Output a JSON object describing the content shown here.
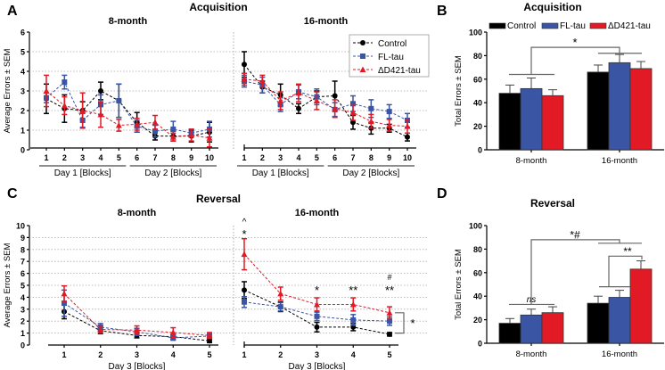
{
  "colors": {
    "Control": "#000000",
    "FL-tau": "#3a55a4",
    "ΔD421-tau": "#e21a26"
  },
  "panel_labels": [
    "A",
    "B",
    "C",
    "D"
  ],
  "chart_data": [
    {
      "id": "A",
      "type": "line",
      "title": "Acquisition",
      "ylabel": "Average Errors ± SEM",
      "ylim": [
        0,
        6
      ],
      "yticks": [
        0,
        1,
        2,
        3,
        4,
        5,
        6
      ],
      "groups": [
        "Day 1 [Blocks]",
        "Day 2 [Blocks]"
      ],
      "legend": [
        "Control",
        "FL-tau",
        "ΔD421-tau"
      ],
      "subplots": [
        {
          "title": "8-month",
          "x": [
            1,
            2,
            3,
            4,
            5,
            6,
            7,
            8,
            9,
            10
          ],
          "series": [
            {
              "name": "Control",
              "values": [
                2.6,
                2.1,
                2.0,
                3.0,
                2.5,
                1.4,
                0.7,
                0.7,
                0.7,
                0.9
              ],
              "sem": [
                0.75,
                0.7,
                0.45,
                0.45,
                0.85,
                0.5,
                0.2,
                0.25,
                0.3,
                0.5
              ]
            },
            {
              "name": "FL-tau",
              "values": [
                2.65,
                3.45,
                1.5,
                2.3,
                2.5,
                1.2,
                0.95,
                1.05,
                0.85,
                1.05
              ],
              "sem": [
                0.25,
                0.35,
                0.35,
                0.5,
                0.85,
                0.3,
                0.3,
                0.4,
                0.2,
                0.4
              ]
            },
            {
              "name": "ΔD421-tau",
              "values": [
                3.0,
                2.25,
                2.0,
                1.8,
                1.25,
                1.3,
                1.4,
                0.65,
                0.75,
                0.6
              ],
              "sem": [
                0.8,
                0.45,
                0.9,
                0.65,
                0.3,
                0.3,
                0.35,
                0.2,
                0.3,
                0.45
              ]
            }
          ]
        },
        {
          "title": "16-month",
          "x": [
            1,
            2,
            3,
            4,
            5,
            6,
            7,
            8,
            9,
            10
          ],
          "series": [
            {
              "name": "Control",
              "values": [
                4.35,
                3.2,
                2.8,
                2.1,
                2.7,
                2.75,
                1.4,
                1.1,
                1.1,
                0.65
              ],
              "sem": [
                0.65,
                0.3,
                0.55,
                0.25,
                0.3,
                0.75,
                0.35,
                0.3,
                0.2,
                0.2
              ]
            },
            {
              "name": "FL-tau",
              "values": [
                3.5,
                3.3,
                2.3,
                2.95,
                2.7,
                2.05,
                2.35,
                2.1,
                1.95,
                1.5
              ],
              "sem": [
                0.3,
                0.4,
                0.35,
                0.35,
                0.4,
                0.35,
                0.4,
                0.45,
                0.35,
                0.35
              ]
            },
            {
              "name": "ΔD421-tau",
              "values": [
                3.6,
                3.5,
                2.5,
                2.9,
                2.5,
                2.1,
                1.9,
                1.45,
                1.25,
                1.2
              ],
              "sem": [
                0.3,
                0.3,
                0.45,
                0.45,
                0.45,
                0.45,
                0.4,
                0.35,
                0.3,
                0.35
              ]
            }
          ]
        }
      ]
    },
    {
      "id": "B",
      "type": "bar",
      "title": "Acquisition",
      "ylabel": "Total Errors ± SEM",
      "ylim": [
        0,
        100
      ],
      "yticks": [
        0,
        20,
        40,
        60,
        80,
        100
      ],
      "categories": [
        "8-month",
        "16-month"
      ],
      "series": [
        {
          "name": "Control",
          "values": [
            48,
            66
          ],
          "sem": [
            7,
            6
          ]
        },
        {
          "name": "FL-tau",
          "values": [
            52,
            74
          ],
          "sem": [
            9,
            7
          ]
        },
        {
          "name": "ΔD421-tau",
          "values": [
            46,
            69
          ],
          "sem": [
            5,
            6
          ]
        }
      ],
      "annotations": [
        "*"
      ]
    },
    {
      "id": "C",
      "type": "line",
      "title": "Reversal",
      "ylabel": "Average Errors ± SEM",
      "ylim": [
        0,
        10
      ],
      "yticks": [
        0,
        1,
        2,
        3,
        4,
        5,
        6,
        7,
        8,
        9,
        10
      ],
      "xlabel": "Day 3 [Blocks]",
      "subplots": [
        {
          "title": "8-month",
          "x": [
            1,
            2,
            3,
            4,
            5
          ],
          "series": [
            {
              "name": "Control",
              "values": [
                2.8,
                1.2,
                0.8,
                0.7,
                0.35
              ],
              "sem": [
                0.6,
                0.25,
                0.2,
                0.2,
                0.15
              ]
            },
            {
              "name": "FL-tau",
              "values": [
                3.5,
                1.5,
                1.1,
                0.6,
                0.75
              ],
              "sem": [
                1.1,
                0.3,
                0.3,
                0.2,
                0.2
              ]
            },
            {
              "name": "ΔD421-tau",
              "values": [
                4.3,
                1.3,
                1.25,
                1.05,
                0.8
              ],
              "sem": [
                0.65,
                0.3,
                0.35,
                0.4,
                0.25
              ]
            }
          ]
        },
        {
          "title": "16-month",
          "x": [
            1,
            2,
            3,
            4,
            5
          ],
          "series": [
            {
              "name": "Control",
              "values": [
                4.6,
                3.2,
                1.5,
                1.5,
                0.9
              ],
              "sem": [
                0.7,
                0.4,
                0.4,
                0.3,
                0.15
              ]
            },
            {
              "name": "FL-tau",
              "values": [
                3.6,
                3.2,
                2.4,
                2.1,
                2.0
              ],
              "sem": [
                0.45,
                0.35,
                0.35,
                0.45,
                0.35
              ]
            },
            {
              "name": "ΔD421-tau",
              "values": [
                7.6,
                4.3,
                3.4,
                3.4,
                2.7
              ],
              "sem": [
                1.3,
                0.55,
                0.55,
                0.55,
                0.5
              ]
            }
          ],
          "annotations": [
            {
              "x": 1,
              "text": "*"
            },
            {
              "x": 1,
              "text": "^"
            },
            {
              "x": 3,
              "text": "*"
            },
            {
              "x": 4,
              "text": "**"
            },
            {
              "x": 5,
              "text": "**"
            },
            {
              "x": 5,
              "text": "#"
            },
            {
              "x": 5,
              "text": "*"
            }
          ]
        }
      ]
    },
    {
      "id": "D",
      "type": "bar",
      "title": "Reversal",
      "ylabel": "Total Errors ± SEM",
      "ylim": [
        0,
        100
      ],
      "yticks": [
        0,
        20,
        40,
        60,
        80,
        100
      ],
      "categories": [
        "8-month",
        "16-month"
      ],
      "series": [
        {
          "name": "Control",
          "values": [
            17,
            34
          ],
          "sem": [
            4,
            6
          ]
        },
        {
          "name": "FL-tau",
          "values": [
            24,
            39
          ],
          "sem": [
            5,
            6
          ]
        },
        {
          "name": "ΔD421-tau",
          "values": [
            26,
            63
          ],
          "sem": [
            5,
            7
          ]
        }
      ],
      "annotations": [
        "ns",
        "*#",
        "**"
      ]
    }
  ]
}
